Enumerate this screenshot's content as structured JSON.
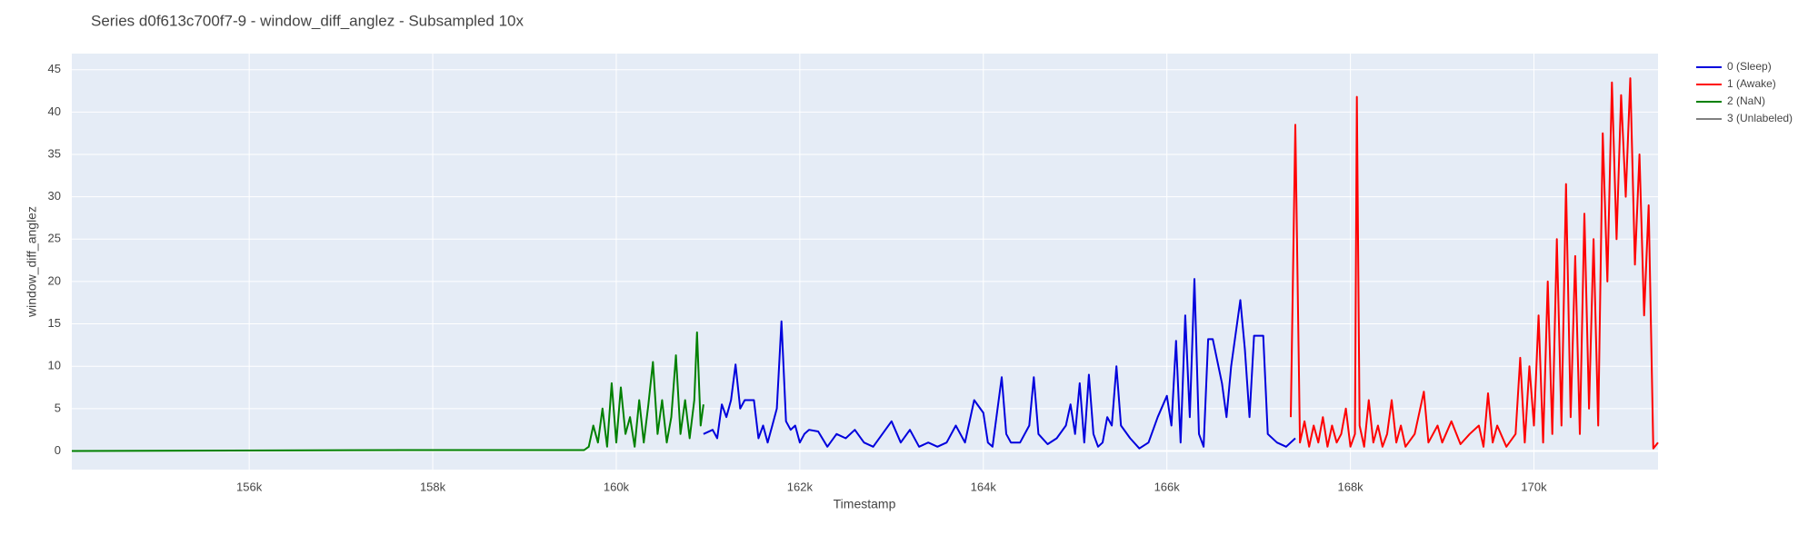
{
  "chart_data": {
    "type": "line",
    "title": "Series d0f613c700f7-9 - window_diff_anglez - Subsampled 10x",
    "x_label": "Timestamp",
    "y_label": "window_diff_anglez",
    "xlim": [
      154067,
      171352
    ],
    "ylim": [
      -2.2,
      46.9
    ],
    "xticks": [
      {
        "value": 156000,
        "label": "156k"
      },
      {
        "value": 158000,
        "label": "158k"
      },
      {
        "value": 160000,
        "label": "160k"
      },
      {
        "value": 162000,
        "label": "162k"
      },
      {
        "value": 164000,
        "label": "164k"
      },
      {
        "value": 166000,
        "label": "166k"
      },
      {
        "value": 168000,
        "label": "168k"
      },
      {
        "value": 170000,
        "label": "170k"
      }
    ],
    "yticks": [
      0,
      5,
      10,
      15,
      20,
      25,
      30,
      35,
      40,
      45
    ],
    "grid": true,
    "legend": "right",
    "series": [
      {
        "name": "0 (Sleep)",
        "color": "#0000dd",
        "x": [
          160950,
          161050,
          161100,
          161150,
          161200,
          161250,
          161300,
          161350,
          161400,
          161450,
          161500,
          161550,
          161600,
          161650,
          161700,
          161750,
          161800,
          161850,
          161900,
          161950,
          162000,
          162050,
          162100,
          162200,
          162300,
          162400,
          162500,
          162600,
          162700,
          162800,
          162900,
          163000,
          163100,
          163200,
          163300,
          163400,
          163500,
          163600,
          163700,
          163800,
          163900,
          164000,
          164050,
          164100,
          164200,
          164250,
          164300,
          164400,
          164500,
          164550,
          164600,
          164700,
          164800,
          164900,
          164950,
          165000,
          165050,
          165100,
          165150,
          165200,
          165250,
          165300,
          165350,
          165400,
          165450,
          165500,
          165600,
          165700,
          165800,
          165900,
          166000,
          166050,
          166100,
          166150,
          166200,
          166250,
          166300,
          166350,
          166400,
          166450,
          166500,
          166600,
          166650,
          166700,
          166800,
          166850,
          166900,
          166950,
          167050,
          167100,
          167200,
          167300,
          167400
        ],
        "values": [
          2,
          2.5,
          1.5,
          5.5,
          4,
          6,
          10.2,
          5,
          6,
          6,
          6,
          1.5,
          3,
          1,
          3,
          5,
          15.3,
          3.5,
          2.5,
          3,
          1,
          2,
          2.5,
          2.3,
          0.5,
          2,
          1.5,
          2.5,
          1,
          0.5,
          2,
          3.5,
          1,
          2.5,
          0.5,
          1,
          0.5,
          1,
          3,
          1,
          6,
          4.5,
          1,
          0.5,
          8.7,
          2,
          1,
          1,
          3,
          8.7,
          2,
          0.8,
          1.5,
          3,
          5.5,
          2,
          8,
          1,
          9,
          2,
          0.5,
          1,
          4,
          3,
          10,
          3,
          1.5,
          0.3,
          1,
          4,
          6.5,
          3,
          13,
          1,
          16,
          4,
          20.3,
          2,
          0.5,
          13.2,
          13.2,
          8,
          4,
          10,
          17.8,
          12,
          4,
          13.6,
          13.6,
          2,
          1,
          0.5,
          1.5
        ]
      },
      {
        "name": "1 (Awake)",
        "color": "#ff0000",
        "x": [
          167350,
          167400,
          167450,
          167500,
          167550,
          167600,
          167650,
          167700,
          167750,
          167800,
          167850,
          167900,
          167950,
          168000,
          168050,
          168070,
          168100,
          168150,
          168200,
          168250,
          168300,
          168350,
          168400,
          168450,
          168500,
          168550,
          168600,
          168700,
          168800,
          168850,
          168950,
          169000,
          169100,
          169200,
          169300,
          169400,
          169450,
          169500,
          169550,
          169600,
          169700,
          169800,
          169850,
          169900,
          169950,
          170000,
          170050,
          170100,
          170150,
          170200,
          170250,
          170300,
          170350,
          170400,
          170450,
          170500,
          170550,
          170600,
          170650,
          170700,
          170750,
          170800,
          170850,
          170900,
          170950,
          171000,
          171050,
          171100,
          171150,
          171200,
          171250,
          171300,
          171352
        ],
        "values": [
          4,
          38.5,
          1,
          3.5,
          0.5,
          3,
          1,
          4,
          0.5,
          3,
          1,
          2,
          5,
          0.5,
          2,
          41.8,
          3,
          0.5,
          6,
          1,
          3,
          0.5,
          2,
          6,
          1,
          3,
          0.5,
          2,
          7,
          1,
          3,
          1,
          3.5,
          0.8,
          2,
          3,
          0.5,
          6.8,
          1,
          3,
          0.5,
          2,
          11,
          1,
          10,
          3,
          16,
          1,
          20,
          2,
          25,
          3,
          31.5,
          4,
          23,
          2,
          28,
          5,
          25,
          3,
          37.5,
          20,
          43.5,
          25,
          42,
          30,
          44,
          22,
          35,
          16,
          29,
          0.3,
          1
        ]
      },
      {
        "name": "2 (NaN)",
        "color": "#008000",
        "x": [
          154067,
          157700,
          159650,
          159700,
          159750,
          159800,
          159850,
          159900,
          159950,
          160000,
          160050,
          160100,
          160150,
          160200,
          160250,
          160300,
          160350,
          160400,
          160450,
          160500,
          160550,
          160600,
          160650,
          160700,
          160750,
          160800,
          160850,
          160880,
          160920,
          160950
        ],
        "values": [
          0,
          0.1,
          0.1,
          0.5,
          3,
          1,
          5,
          0.5,
          8,
          1,
          7.5,
          2,
          4,
          0.5,
          6,
          1,
          5.5,
          10.5,
          2,
          6,
          1,
          4,
          11.3,
          2,
          6,
          1.5,
          6,
          14,
          3,
          5.5
        ]
      },
      {
        "name": "3 (Unlabeled)",
        "color": "#808080",
        "x": [],
        "values": []
      }
    ]
  }
}
